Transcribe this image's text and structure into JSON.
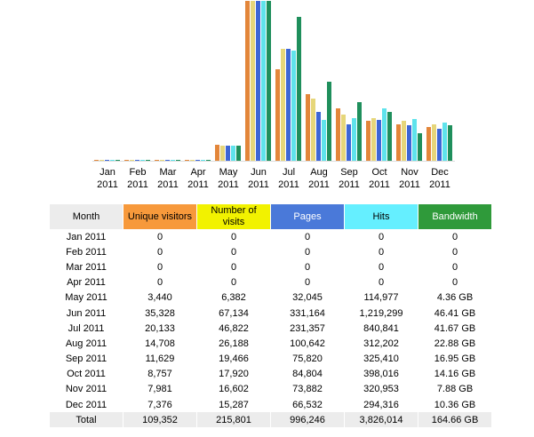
{
  "chart_data": {
    "type": "bar",
    "categories": [
      [
        "Jan",
        "2011"
      ],
      [
        "Feb",
        "2011"
      ],
      [
        "Mar",
        "2011"
      ],
      [
        "Apr",
        "2011"
      ],
      [
        "May",
        "2011"
      ],
      [
        "Jun",
        "2011"
      ],
      [
        "Jul",
        "2011"
      ],
      [
        "Aug",
        "2011"
      ],
      [
        "Sep",
        "2011"
      ],
      [
        "Oct",
        "2011"
      ],
      [
        "Nov",
        "2011"
      ],
      [
        "Dec",
        "2011"
      ]
    ],
    "series": [
      {
        "name": "Unique visitors",
        "color": "#e3863a",
        "values": [
          0,
          0,
          0,
          0,
          3440,
          35328,
          20133,
          14708,
          11629,
          8757,
          7981,
          7376
        ]
      },
      {
        "name": "Number of visits",
        "color": "#e6d67a",
        "values": [
          0,
          0,
          0,
          0,
          6382,
          67134,
          46822,
          26188,
          19466,
          17920,
          16602,
          15287
        ]
      },
      {
        "name": "Pages",
        "color": "#3d66d6",
        "values": [
          0,
          0,
          0,
          0,
          32045,
          331164,
          231357,
          100642,
          75820,
          84804,
          73882,
          66532
        ]
      },
      {
        "name": "Hits",
        "color": "#5fe3ec",
        "values": [
          0,
          0,
          0,
          0,
          114977,
          1219299,
          840841,
          312202,
          325410,
          398016,
          320953,
          294316
        ]
      },
      {
        "name": "Bandwidth",
        "color": "#1f8f5c",
        "values": [
          0,
          0,
          0,
          0,
          4.36,
          46.41,
          41.67,
          22.88,
          16.95,
          14.16,
          7.88,
          10.36
        ]
      }
    ]
  },
  "table": {
    "headers": {
      "month": "Month",
      "unique_visitors": "Unique visitors",
      "visits": "Number of visits",
      "pages": "Pages",
      "hits": "Hits",
      "bandwidth": "Bandwidth"
    },
    "rows": [
      [
        "Jan 2011",
        "0",
        "0",
        "0",
        "0",
        "0"
      ],
      [
        "Feb 2011",
        "0",
        "0",
        "0",
        "0",
        "0"
      ],
      [
        "Mar 2011",
        "0",
        "0",
        "0",
        "0",
        "0"
      ],
      [
        "Apr 2011",
        "0",
        "0",
        "0",
        "0",
        "0"
      ],
      [
        "May 2011",
        "3,440",
        "6,382",
        "32,045",
        "114,977",
        "4.36 GB"
      ],
      [
        "Jun 2011",
        "35,328",
        "67,134",
        "331,164",
        "1,219,299",
        "46.41 GB"
      ],
      [
        "Jul 2011",
        "20,133",
        "46,822",
        "231,357",
        "840,841",
        "41.67 GB"
      ],
      [
        "Aug 2011",
        "14,708",
        "26,188",
        "100,642",
        "312,202",
        "22.88 GB"
      ],
      [
        "Sep 2011",
        "11,629",
        "19,466",
        "75,820",
        "325,410",
        "16.95 GB"
      ],
      [
        "Oct 2011",
        "8,757",
        "17,920",
        "84,804",
        "398,016",
        "14.16 GB"
      ],
      [
        "Nov 2011",
        "7,981",
        "16,602",
        "73,882",
        "320,953",
        "7.88 GB"
      ],
      [
        "Dec 2011",
        "7,376",
        "15,287",
        "66,532",
        "294,316",
        "10.36 GB"
      ]
    ],
    "total": [
      "Total",
      "109,352",
      "215,801",
      "996,246",
      "3,826,014",
      "164.66 GB"
    ]
  }
}
